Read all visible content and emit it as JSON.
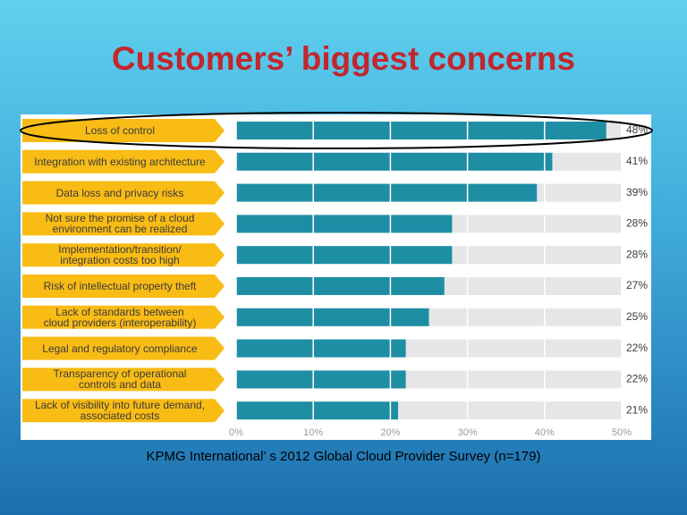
{
  "chart_data": {
    "type": "bar",
    "orientation": "horizontal",
    "title": "Customers’ biggest concerns",
    "caption": "KPMG International’ s 2012 Global Cloud Provider Survey (n=179)",
    "categories": [
      "Loss of control",
      "Integration with existing architecture",
      "Data loss and privacy risks",
      "Not sure the promise of a cloud\nenvironment can be realized",
      "Implementation/transition/\nintegration costs too high",
      "Risk of intellectual property theft",
      "Lack of standards between\ncloud providers (interoperability)",
      "Legal and regulatory compliance",
      "Transparency of operational\ncontrols and data",
      "Lack of visibility into future demand,\nassociated costs"
    ],
    "values": [
      48,
      41,
      39,
      28,
      28,
      27,
      25,
      22,
      22,
      21
    ],
    "value_labels": [
      "48%",
      "41%",
      "39%",
      "28%",
      "28%",
      "27%",
      "25%",
      "22%",
      "22%",
      "21%"
    ],
    "color": "#1e8ea5",
    "track_color": "#e6e6e8",
    "label_color": "#f9bc15",
    "xlim": [
      0,
      50
    ],
    "xticks": [
      {
        "value": 0,
        "label": "0%"
      },
      {
        "value": 10,
        "label": "10%"
      },
      {
        "value": 20,
        "label": "20%"
      },
      {
        "value": 30,
        "label": "30%"
      },
      {
        "value": 40,
        "label": "40%"
      },
      {
        "value": 50,
        "label": "50%"
      }
    ]
  }
}
